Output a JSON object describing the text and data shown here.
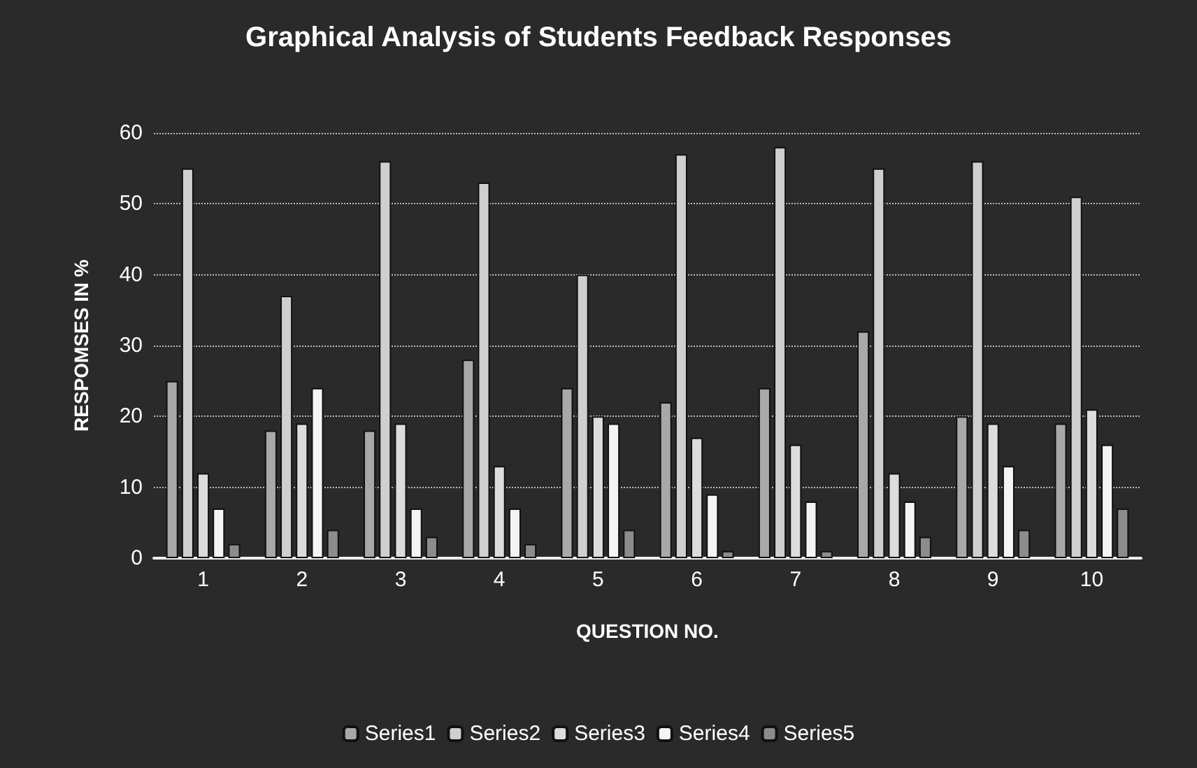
{
  "chart_data": {
    "type": "bar",
    "title": "Graphical Analysis of Students Feedback Responses",
    "xlabel": "QUESTION NO.",
    "ylabel": "RESPOMSES IN %",
    "categories": [
      "1",
      "2",
      "3",
      "4",
      "5",
      "6",
      "7",
      "8",
      "9",
      "10"
    ],
    "series": [
      {
        "name": "Series1",
        "color": "#a8a8a8",
        "values": [
          25,
          18,
          18,
          28,
          24,
          22,
          24,
          32,
          20,
          19
        ]
      },
      {
        "name": "Series2",
        "color": "#cfcfcf",
        "values": [
          55,
          37,
          56,
          53,
          40,
          57,
          58,
          55,
          56,
          51
        ]
      },
      {
        "name": "Series3",
        "color": "#dcdcdc",
        "values": [
          12,
          19,
          19,
          13,
          20,
          17,
          16,
          12,
          19,
          21
        ]
      },
      {
        "name": "Series4",
        "color": "#f4f4f4",
        "values": [
          7,
          24,
          7,
          7,
          19,
          9,
          8,
          8,
          13,
          16
        ]
      },
      {
        "name": "Series5",
        "color": "#8c8c8c",
        "values": [
          2,
          4,
          3,
          2,
          4,
          1,
          1,
          3,
          4,
          7
        ]
      }
    ],
    "ylim": [
      0,
      60
    ],
    "yticks": [
      0,
      10,
      20,
      30,
      40,
      50,
      60
    ],
    "grid": "y",
    "legend": "bottom"
  }
}
